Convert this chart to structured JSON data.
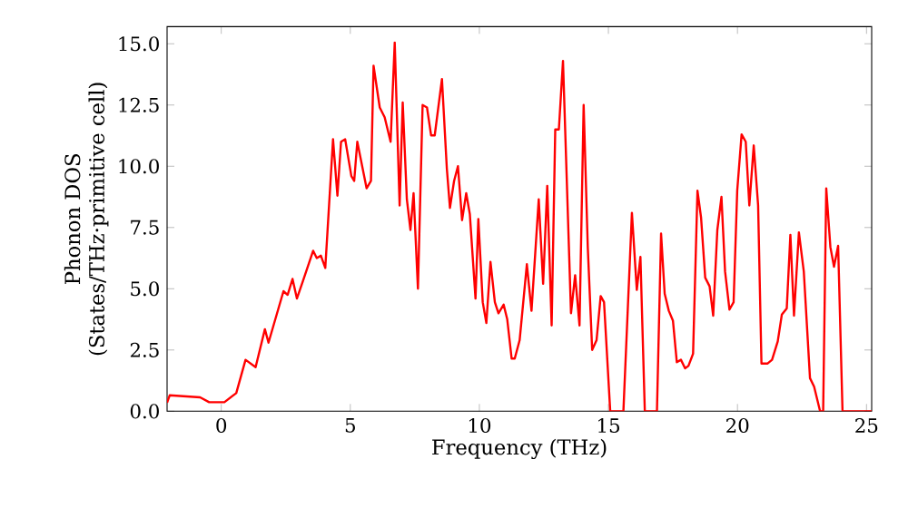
{
  "chart_data": {
    "type": "line",
    "xlabel": "Frequency (THz)",
    "ylabel": "Phonon DOS\n(States/THz·primitive cell)",
    "xlim": [
      -2.1,
      25.2
    ],
    "ylim": [
      0,
      15.7
    ],
    "xticks": [
      0,
      5,
      10,
      15,
      20,
      25
    ],
    "yticks": [
      {
        "value": 0,
        "label": "0.0"
      },
      {
        "value": 2.5,
        "label": "2.5"
      },
      {
        "value": 5,
        "label": "5.0"
      },
      {
        "value": 7.5,
        "label": "7.5"
      },
      {
        "value": 10,
        "label": "10.0"
      },
      {
        "value": 12.5,
        "label": "12.5"
      },
      {
        "value": 15,
        "label": "15.0"
      }
    ],
    "marker": "none",
    "line_style": "solid",
    "series": [
      {
        "color": "#ff0000",
        "x": [
          -2.1,
          -2.0,
          -0.82,
          -0.47,
          0.12,
          0.58,
          0.94,
          1.33,
          1.69,
          1.83,
          2.41,
          2.57,
          2.76,
          2.93,
          3.16,
          3.56,
          3.7,
          3.86,
          4.03,
          4.33,
          4.5,
          4.64,
          4.8,
          5.04,
          5.15,
          5.27,
          5.63,
          5.8,
          5.9,
          6.14,
          6.33,
          6.56,
          6.72,
          6.91,
          7.03,
          7.19,
          7.33,
          7.45,
          7.62,
          7.8,
          7.97,
          8.13,
          8.27,
          8.55,
          8.74,
          8.86,
          9.02,
          9.17,
          9.33,
          9.49,
          9.63,
          9.85,
          9.96,
          10.13,
          10.27,
          10.43,
          10.6,
          10.74,
          10.94,
          11.08,
          11.25,
          11.37,
          11.56,
          11.84,
          12.02,
          12.3,
          12.47,
          12.63,
          12.8,
          12.94,
          13.08,
          13.24,
          13.55,
          13.71,
          13.88,
          14.04,
          14.2,
          14.37,
          14.54,
          14.7,
          14.83,
          15.07,
          15.58,
          15.91,
          16.1,
          16.24,
          16.41,
          16.88,
          17.04,
          17.18,
          17.34,
          17.5,
          17.65,
          17.81,
          17.97,
          18.1,
          18.28,
          18.45,
          18.59,
          18.75,
          18.92,
          19.06,
          19.22,
          19.38,
          19.52,
          19.69,
          19.85,
          19.99,
          20.16,
          20.32,
          20.46,
          20.63,
          20.8,
          20.93,
          21.17,
          21.34,
          21.56,
          21.72,
          21.91,
          22.05,
          22.19,
          22.38,
          22.57,
          22.81,
          22.97,
          23.2,
          23.32,
          23.44,
          23.6,
          23.74,
          23.9,
          24.07,
          25.2
        ],
        "values": [
          0.35,
          0.65,
          0.57,
          0.37,
          0.37,
          0.74,
          2.1,
          1.8,
          3.35,
          2.8,
          4.9,
          4.75,
          5.4,
          4.6,
          5.3,
          6.55,
          6.25,
          6.35,
          5.85,
          11.1,
          8.8,
          11.0,
          11.1,
          9.6,
          9.4,
          11.0,
          9.1,
          9.4,
          14.1,
          12.4,
          12.0,
          11.0,
          15.05,
          8.4,
          12.6,
          8.65,
          7.4,
          8.9,
          5.0,
          12.5,
          12.4,
          11.26,
          11.26,
          13.56,
          9.9,
          8.3,
          9.4,
          10.0,
          7.8,
          8.9,
          8.05,
          4.6,
          7.85,
          4.45,
          3.6,
          6.1,
          4.45,
          4.0,
          4.35,
          3.75,
          2.15,
          2.15,
          2.9,
          6.0,
          4.1,
          8.65,
          5.2,
          9.2,
          3.5,
          11.5,
          11.5,
          14.3,
          4.0,
          5.55,
          3.5,
          12.5,
          6.7,
          2.5,
          2.9,
          4.7,
          4.45,
          0,
          0,
          8.1,
          4.95,
          6.3,
          0,
          0,
          7.25,
          4.8,
          4.1,
          3.7,
          2.0,
          2.1,
          1.75,
          1.85,
          2.35,
          9.0,
          7.9,
          5.45,
          5.1,
          3.9,
          7.4,
          8.75,
          5.7,
          4.15,
          4.45,
          9.0,
          11.3,
          11.0,
          8.4,
          10.85,
          8.4,
          1.95,
          1.95,
          2.1,
          2.85,
          3.95,
          4.2,
          7.2,
          3.9,
          7.3,
          5.7,
          1.35,
          1.0,
          0,
          0,
          9.1,
          6.7,
          5.9,
          6.75,
          0,
          0
        ]
      }
    ]
  }
}
